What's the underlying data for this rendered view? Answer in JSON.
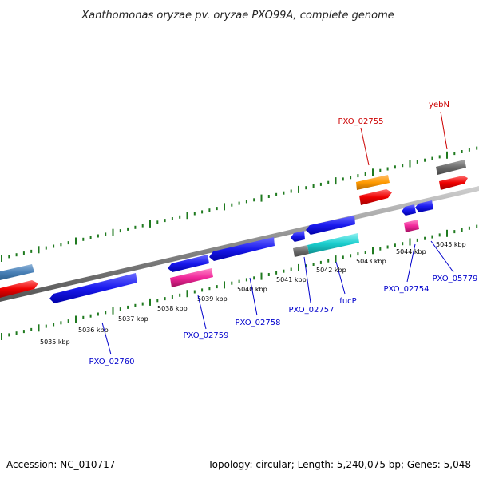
{
  "title": "Xanthomonas oryzae pv. oryzae PXO99A, complete genome",
  "footer": {
    "accession": "Accession: NC_010717",
    "summary": "Topology: circular; Length: 5,240,075 bp; Genes: 5,048"
  },
  "colors": {
    "backbone": "#8a8a8a",
    "tick": "#1f7a1f",
    "label_red": "#cc0000",
    "label_blue": "#0000cc",
    "leader_red": "#cc0000",
    "leader_blue": "#0000cc"
  },
  "ticks": [
    {
      "label": "5035 kbp"
    },
    {
      "label": "5036 kbp"
    },
    {
      "label": "5037 kbp"
    },
    {
      "label": "5038 kbp"
    },
    {
      "label": "5039 kbp"
    },
    {
      "label": "5040 kbp"
    },
    {
      "label": "5041 kbp"
    },
    {
      "label": "5042 kbp"
    },
    {
      "label": "5043 kbp"
    },
    {
      "label": "5044 kbp"
    },
    {
      "label": "5045 kbp"
    }
  ],
  "gene_labels": [
    {
      "text": "PXO_02755",
      "strand": "forward"
    },
    {
      "text": "yebN",
      "strand": "forward"
    },
    {
      "text": "PXO_02760",
      "strand": "reverse"
    },
    {
      "text": "PXO_02759",
      "strand": "reverse"
    },
    {
      "text": "PXO_02758",
      "strand": "reverse"
    },
    {
      "text": "PXO_02757",
      "strand": "reverse"
    },
    {
      "text": "fucP",
      "strand": "reverse"
    },
    {
      "text": "PXO_02754",
      "strand": "reverse"
    },
    {
      "text": "PXO_05779",
      "strand": "reverse"
    }
  ]
}
